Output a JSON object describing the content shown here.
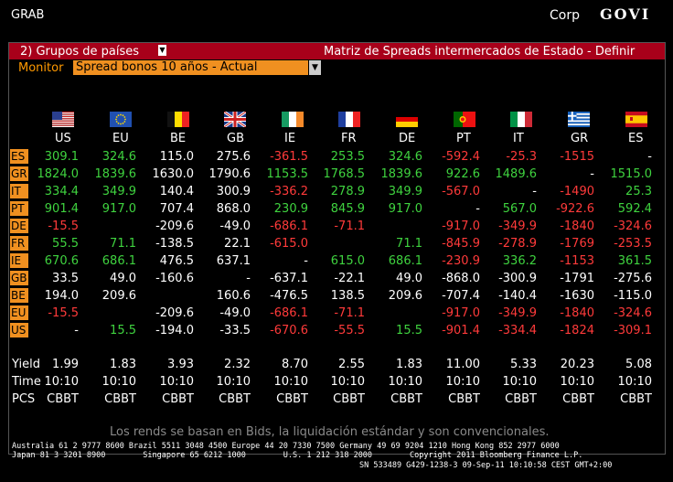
{
  "header": {
    "left": "GRAB",
    "market": "Corp",
    "code": "GOVI"
  },
  "title_bar": {
    "menu_label": "2) Grupos de países",
    "title": "Matriz de Spreads intermercados de Estado - Definir"
  },
  "monitor": {
    "label": "Monitor",
    "selected": "Spread bonos 10 años - Actual"
  },
  "columns": [
    "US",
    "EU",
    "BE",
    "GB",
    "IE",
    "FR",
    "DE",
    "PT",
    "IT",
    "GR",
    "ES"
  ],
  "flags": [
    "us-flag-icon",
    "eu-flag-icon",
    "be-flag-icon",
    "gb-flag-icon",
    "ie-flag-icon",
    "fr-flag-icon",
    "de-flag-icon",
    "pt-flag-icon",
    "it-flag-icon",
    "gr-flag-icon",
    "es-flag-icon"
  ],
  "rows": [
    {
      "code": "ES",
      "cells": [
        "309.1",
        "324.6",
        "115.0",
        "275.6",
        "-361.5",
        "253.5",
        "324.6",
        "-592.4",
        "-25.3",
        "-1515",
        "-"
      ],
      "colors": [
        "g",
        "g",
        "w",
        "w",
        "r",
        "g",
        "g",
        "r",
        "r",
        "r",
        "w"
      ]
    },
    {
      "code": "GR",
      "cells": [
        "1824.0",
        "1839.6",
        "1630.0",
        "1790.6",
        "1153.5",
        "1768.5",
        "1839.6",
        "922.6",
        "1489.6",
        "-",
        "1515.0"
      ],
      "colors": [
        "g",
        "g",
        "w",
        "w",
        "g",
        "g",
        "g",
        "g",
        "g",
        "w",
        "g"
      ]
    },
    {
      "code": "IT",
      "cells": [
        "334.4",
        "349.9",
        "140.4",
        "300.9",
        "-336.2",
        "278.9",
        "349.9",
        "-567.0",
        "-",
        "-1490",
        "25.3"
      ],
      "colors": [
        "g",
        "g",
        "w",
        "w",
        "r",
        "g",
        "g",
        "r",
        "w",
        "r",
        "g"
      ]
    },
    {
      "code": "PT",
      "cells": [
        "901.4",
        "917.0",
        "707.4",
        "868.0",
        "230.9",
        "845.9",
        "917.0",
        "-",
        "567.0",
        "-922.6",
        "592.4"
      ],
      "colors": [
        "g",
        "g",
        "w",
        "w",
        "g",
        "g",
        "g",
        "w",
        "g",
        "r",
        "g"
      ]
    },
    {
      "code": "DE",
      "cells": [
        "-15.5",
        "",
        "-209.6",
        "-49.0",
        "-686.1",
        "-71.1",
        "",
        "-917.0",
        "-349.9",
        "-1840",
        "-324.6"
      ],
      "colors": [
        "r",
        "w",
        "w",
        "w",
        "r",
        "r",
        "w",
        "r",
        "r",
        "r",
        "r"
      ]
    },
    {
      "code": "FR",
      "cells": [
        "55.5",
        "71.1",
        "-138.5",
        "22.1",
        "-615.0",
        "",
        "71.1",
        "-845.9",
        "-278.9",
        "-1769",
        "-253.5"
      ],
      "colors": [
        "g",
        "g",
        "w",
        "w",
        "r",
        "w",
        "g",
        "r",
        "r",
        "r",
        "r"
      ]
    },
    {
      "code": "IE",
      "cells": [
        "670.6",
        "686.1",
        "476.5",
        "637.1",
        "-",
        "615.0",
        "686.1",
        "-230.9",
        "336.2",
        "-1153",
        "361.5"
      ],
      "colors": [
        "g",
        "g",
        "w",
        "w",
        "w",
        "g",
        "g",
        "r",
        "g",
        "r",
        "g"
      ]
    },
    {
      "code": "GB",
      "cells": [
        "33.5",
        "49.0",
        "-160.6",
        "-",
        "-637.1",
        "-22.1",
        "49.0",
        "-868.0",
        "-300.9",
        "-1791",
        "-275.6"
      ],
      "colors": [
        "w",
        "w",
        "w",
        "w",
        "w",
        "w",
        "w",
        "w",
        "w",
        "w",
        "w"
      ]
    },
    {
      "code": "BE",
      "cells": [
        "194.0",
        "209.6",
        "",
        "160.6",
        "-476.5",
        "138.5",
        "209.6",
        "-707.4",
        "-140.4",
        "-1630",
        "-115.0"
      ],
      "colors": [
        "w",
        "w",
        "w",
        "w",
        "w",
        "w",
        "w",
        "w",
        "w",
        "w",
        "w"
      ]
    },
    {
      "code": "EU",
      "cells": [
        "-15.5",
        "",
        "-209.6",
        "-49.0",
        "-686.1",
        "-71.1",
        "",
        "-917.0",
        "-349.9",
        "-1840",
        "-324.6"
      ],
      "colors": [
        "r",
        "w",
        "w",
        "w",
        "r",
        "r",
        "w",
        "r",
        "r",
        "r",
        "r"
      ]
    },
    {
      "code": "US",
      "cells": [
        "-",
        "15.5",
        "-194.0",
        "-33.5",
        "-670.6",
        "-55.5",
        "15.5",
        "-901.4",
        "-334.4",
        "-1824",
        "-309.1"
      ],
      "colors": [
        "w",
        "g",
        "w",
        "w",
        "r",
        "r",
        "g",
        "r",
        "r",
        "r",
        "r"
      ]
    }
  ],
  "summary": {
    "yield_label": "Yield",
    "time_label": "Time",
    "pcs_label": "PCS",
    "yield": [
      "1.99",
      "1.83",
      "3.93",
      "2.32",
      "8.70",
      "2.55",
      "1.83",
      "11.00",
      "5.33",
      "20.23",
      "5.08"
    ],
    "yield_colors": [
      "o",
      "o",
      "w",
      "w",
      "o",
      "o",
      "o",
      "o",
      "o",
      "o",
      "o"
    ],
    "time": [
      "10:10",
      "10:10",
      "10:10",
      "10:10",
      "10:10",
      "10:10",
      "10:10",
      "10:10",
      "10:10",
      "10:10",
      "10:10"
    ],
    "time_colors": [
      "o",
      "o",
      "w",
      "w",
      "o",
      "o",
      "o",
      "o",
      "o",
      "o",
      "o"
    ],
    "pcs": [
      "CBBT",
      "CBBT",
      "CBBT",
      "CBBT",
      "CBBT",
      "CBBT",
      "CBBT",
      "CBBT",
      "CBBT",
      "CBBT",
      "CBBT"
    ],
    "pcs_colors": [
      "o",
      "o",
      "o",
      "o",
      "o",
      "o",
      "o",
      "o",
      "o",
      "o",
      "o"
    ]
  },
  "note": "Los rends se basan en Bids, la liquidación estándar y son convencionales.",
  "footer": {
    "line1": "Australia 61 2 9777 8600 Brazil 5511 3048 4500 Europe 44 20 7330 7500 Germany 49 69 9204 1210 Hong Kong 852 2977 6000",
    "line2": "Japan 81 3 3201 8900        Singapore 65 6212 1000        U.S. 1 212 318 2000        Copyright 2011 Bloomberg Finance L.P.",
    "line3": "SN 533489 G429-1238-3 09-Sep-11 10:10:58 CEST GMT+2:00"
  }
}
